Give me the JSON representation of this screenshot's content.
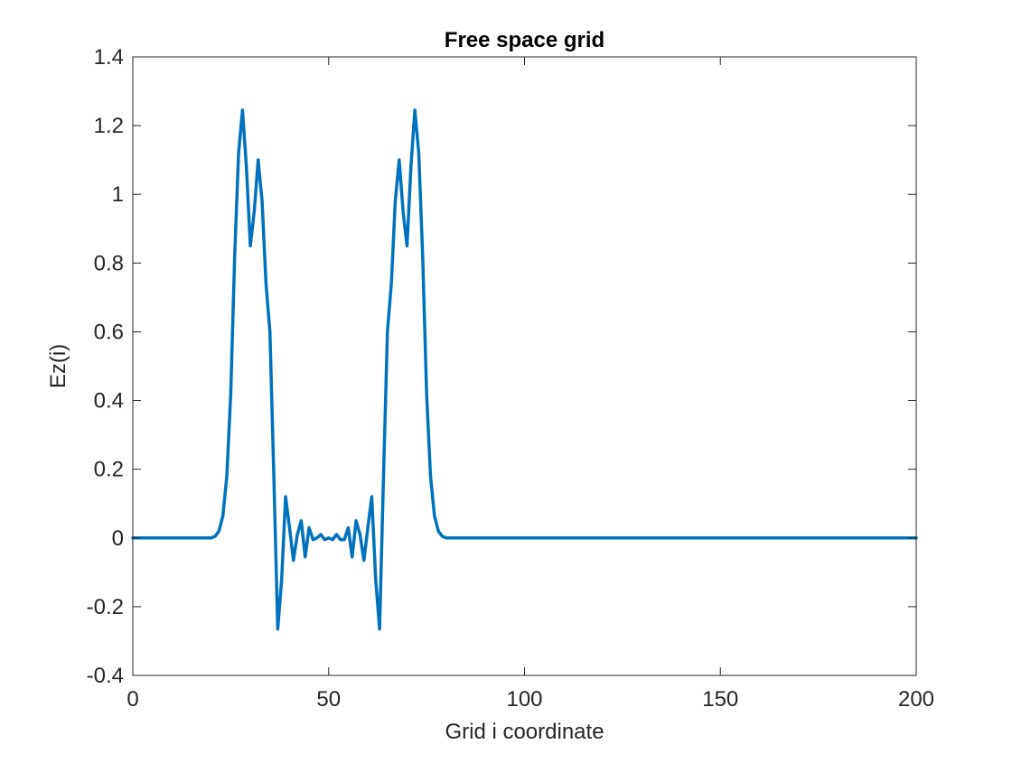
{
  "chart_data": {
    "type": "line",
    "title": "Free space grid",
    "xlabel": "Grid i coordinate",
    "ylabel": "Ez(i)",
    "xlim": [
      0,
      200
    ],
    "ylim": [
      -0.4,
      1.4
    ],
    "grid": false,
    "x_ticks": [
      0,
      50,
      100,
      150,
      200
    ],
    "x_tick_labels": [
      "0",
      "50",
      "100",
      "150",
      "200"
    ],
    "y_ticks": [
      -0.4,
      -0.2,
      0,
      0.2,
      0.4,
      0.6,
      0.8,
      1,
      1.2,
      1.4
    ],
    "y_tick_labels": [
      "-0.4",
      "-0.2",
      "0",
      "0.2",
      "0.4",
      "0.6",
      "0.8",
      "1",
      "1.2",
      "1.4"
    ],
    "series": [
      {
        "color": "#0072bd",
        "x": [
          0,
          20,
          21,
          22,
          23,
          24,
          25,
          26,
          27,
          28,
          29,
          30,
          31,
          32,
          33,
          34,
          35,
          36,
          37,
          38,
          39,
          40,
          41,
          42,
          43,
          44,
          45,
          46,
          47,
          48,
          49,
          50,
          51,
          52,
          53,
          54,
          55,
          56,
          57,
          58,
          59,
          60,
          61,
          62,
          63,
          64,
          65,
          66,
          67,
          68,
          69,
          70,
          71,
          72,
          73,
          74,
          75,
          76,
          77,
          78,
          79,
          80,
          200
        ],
        "y": [
          0,
          0,
          0.005,
          0.02,
          0.065,
          0.18,
          0.42,
          0.82,
          1.12,
          1.245,
          1.08,
          0.85,
          0.95,
          1.1,
          0.98,
          0.74,
          0.6,
          0.18,
          -0.265,
          -0.12,
          0.12,
          0.03,
          -0.065,
          0.01,
          0.05,
          -0.055,
          0.03,
          -0.005,
          0,
          0.01,
          -0.005,
          0,
          -0.005,
          0.01,
          -0.005,
          -0.005,
          0.03,
          -0.055,
          0.05,
          0.01,
          -0.065,
          0.03,
          0.12,
          -0.12,
          -0.265,
          0.18,
          0.6,
          0.74,
          0.98,
          1.1,
          0.95,
          0.85,
          1.08,
          1.245,
          1.12,
          0.82,
          0.42,
          0.18,
          0.065,
          0.02,
          0.005,
          0,
          0
        ]
      }
    ]
  }
}
